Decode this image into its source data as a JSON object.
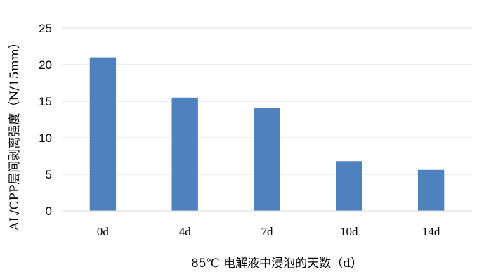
{
  "chart_data": {
    "type": "bar",
    "categories": [
      "0d",
      "4d",
      "7d",
      "10d",
      "14d"
    ],
    "values": [
      21.0,
      15.5,
      14.1,
      6.8,
      5.6
    ],
    "ylim": [
      0,
      25
    ],
    "yticks": [
      0,
      5,
      10,
      15,
      20,
      25
    ],
    "xlabel": "85℃ 电解液中浸泡的天数（d）",
    "ylabel": "AL/CPP层间剥离强度（N/15mm）",
    "grid": true,
    "bar_color": "#4e81bd",
    "grid_color": "#d9d9d9"
  }
}
